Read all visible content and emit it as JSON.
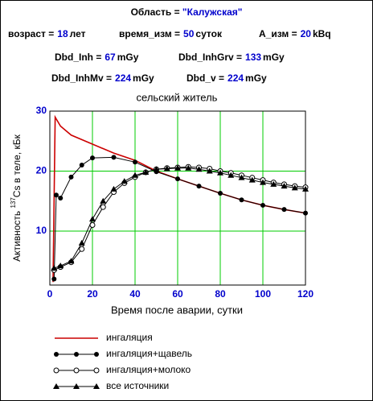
{
  "header": {
    "region_label": "Область =",
    "region": "\"Калужская\"",
    "params": [
      {
        "label": "возраст =",
        "value": "18",
        "unit": "лет"
      },
      {
        "label": "время_изм =",
        "value": "50",
        "unit": "суток"
      },
      {
        "label": "A_изм =",
        "value": "20",
        "unit": "kBq"
      }
    ],
    "doses": [
      {
        "label": "Dbd_Inh =",
        "value": "67",
        "unit": "mGy"
      },
      {
        "label": "Dbd_InhGrv =",
        "value": "133",
        "unit": "mGy"
      },
      {
        "label": "Dbd_InhMv =",
        "value": "224",
        "unit": "mGy"
      },
      {
        "label": "Dbd_v =",
        "value": "224",
        "unit": "mGy"
      }
    ]
  },
  "chart_data": {
    "type": "line",
    "subtitle": "сельский житель",
    "xlabel": "Время после аварии, сутки",
    "ylabel": [
      "Активность ",
      "137",
      "Cs в теле, кБк"
    ],
    "xlim": [
      0,
      120
    ],
    "xticks": [
      0,
      20,
      40,
      60,
      80,
      100,
      120
    ],
    "ylim": [
      1,
      30
    ],
    "yticks": [
      10,
      20,
      30
    ],
    "grid": true,
    "grid_color": "#00cc00",
    "legend": "below",
    "series": [
      {
        "name": "ингаляция",
        "color": "#cc0000",
        "marker": "none",
        "x": [
          1.5,
          2.5,
          5,
          10,
          20,
          30,
          40,
          50,
          60,
          70,
          80,
          90,
          100,
          110,
          120
        ],
        "values": [
          1.5,
          29,
          27.5,
          26,
          24.5,
          23,
          21.8,
          20,
          18.7,
          17.5,
          16.3,
          15.2,
          14.3,
          13.6,
          13
        ]
      },
      {
        "name": "ингаляция+щавель",
        "color": "#000000",
        "marker": "circle-filled",
        "x": [
          2,
          3,
          5,
          10,
          15,
          20,
          30,
          40,
          50,
          60,
          70,
          80,
          90,
          100,
          110,
          120
        ],
        "values": [
          2,
          16,
          15.5,
          19,
          21,
          22.2,
          22.3,
          21.5,
          19.9,
          18.7,
          17.5,
          16.3,
          15.2,
          14.3,
          13.6,
          13
        ]
      },
      {
        "name": "ингаляция+молоко",
        "color": "#000000",
        "marker": "circle-open",
        "x": [
          2,
          5,
          10,
          15,
          20,
          25,
          30,
          35,
          40,
          45,
          50,
          55,
          60,
          65,
          70,
          75,
          80,
          85,
          90,
          95,
          100,
          105,
          110,
          115,
          120
        ],
        "values": [
          3.5,
          4,
          4.8,
          7,
          11,
          14,
          16.5,
          18,
          19,
          19.8,
          20.3,
          20.5,
          20.6,
          20.7,
          20.6,
          20.4,
          20,
          19.7,
          19.3,
          18.9,
          18.5,
          18.1,
          17.8,
          17.5,
          17.3
        ]
      },
      {
        "name": "все источники",
        "color": "#000000",
        "marker": "triangle",
        "x": [
          2,
          5,
          10,
          15,
          20,
          25,
          30,
          35,
          40,
          45,
          50,
          55,
          60,
          65,
          70,
          75,
          80,
          85,
          90,
          95,
          100,
          105,
          110,
          115,
          120
        ],
        "values": [
          3.8,
          4.2,
          5,
          8,
          12,
          15,
          17,
          18.3,
          19.3,
          19.8,
          20.3,
          20.4,
          20.5,
          20.5,
          20.3,
          20,
          19.7,
          19.3,
          18.9,
          18.5,
          18.1,
          17.8,
          17.5,
          17.2,
          17
        ]
      }
    ]
  }
}
